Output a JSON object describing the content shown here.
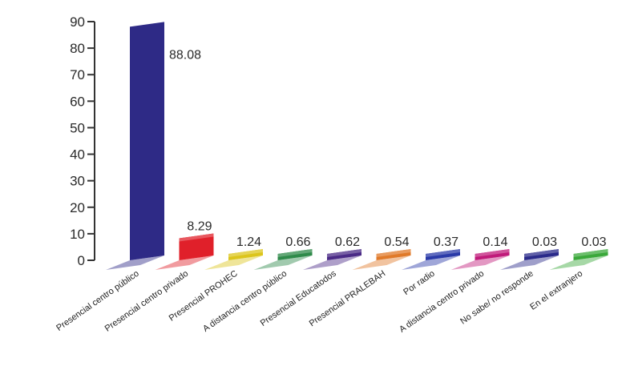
{
  "chart_data": {
    "type": "bar",
    "title": "",
    "xlabel": "",
    "ylabel": "",
    "ylim": [
      0,
      90
    ],
    "yticks": [
      0,
      10,
      20,
      30,
      40,
      50,
      60,
      70,
      80,
      90
    ],
    "grid": false,
    "legend": "none",
    "categories": [
      "Presencial centro público",
      "Presencial centro privado",
      "Presencial PROHEC",
      "A distancia centro público",
      "Presencial Educatodos",
      "Presencial PRALEBAH",
      "Por radio",
      "A distancia centro privado",
      "No sabe/ no responde",
      "En el extranjero"
    ],
    "values": [
      88.08,
      8.29,
      1.24,
      0.66,
      0.62,
      0.54,
      0.37,
      0.14,
      0.03,
      0.03
    ],
    "value_labels": [
      "88.08",
      "8.29",
      "1.24",
      "0.66",
      "0.62",
      "0.54",
      "0.37",
      "0.14",
      "0.03",
      "0.03"
    ],
    "colors": [
      "#2e2a86",
      "#e0202a",
      "#dcc51c",
      "#2f8a4a",
      "#4a2a86",
      "#e07a2a",
      "#2a3aa8",
      "#c01a7a",
      "#2a2a8a",
      "#3aa83a"
    ]
  }
}
